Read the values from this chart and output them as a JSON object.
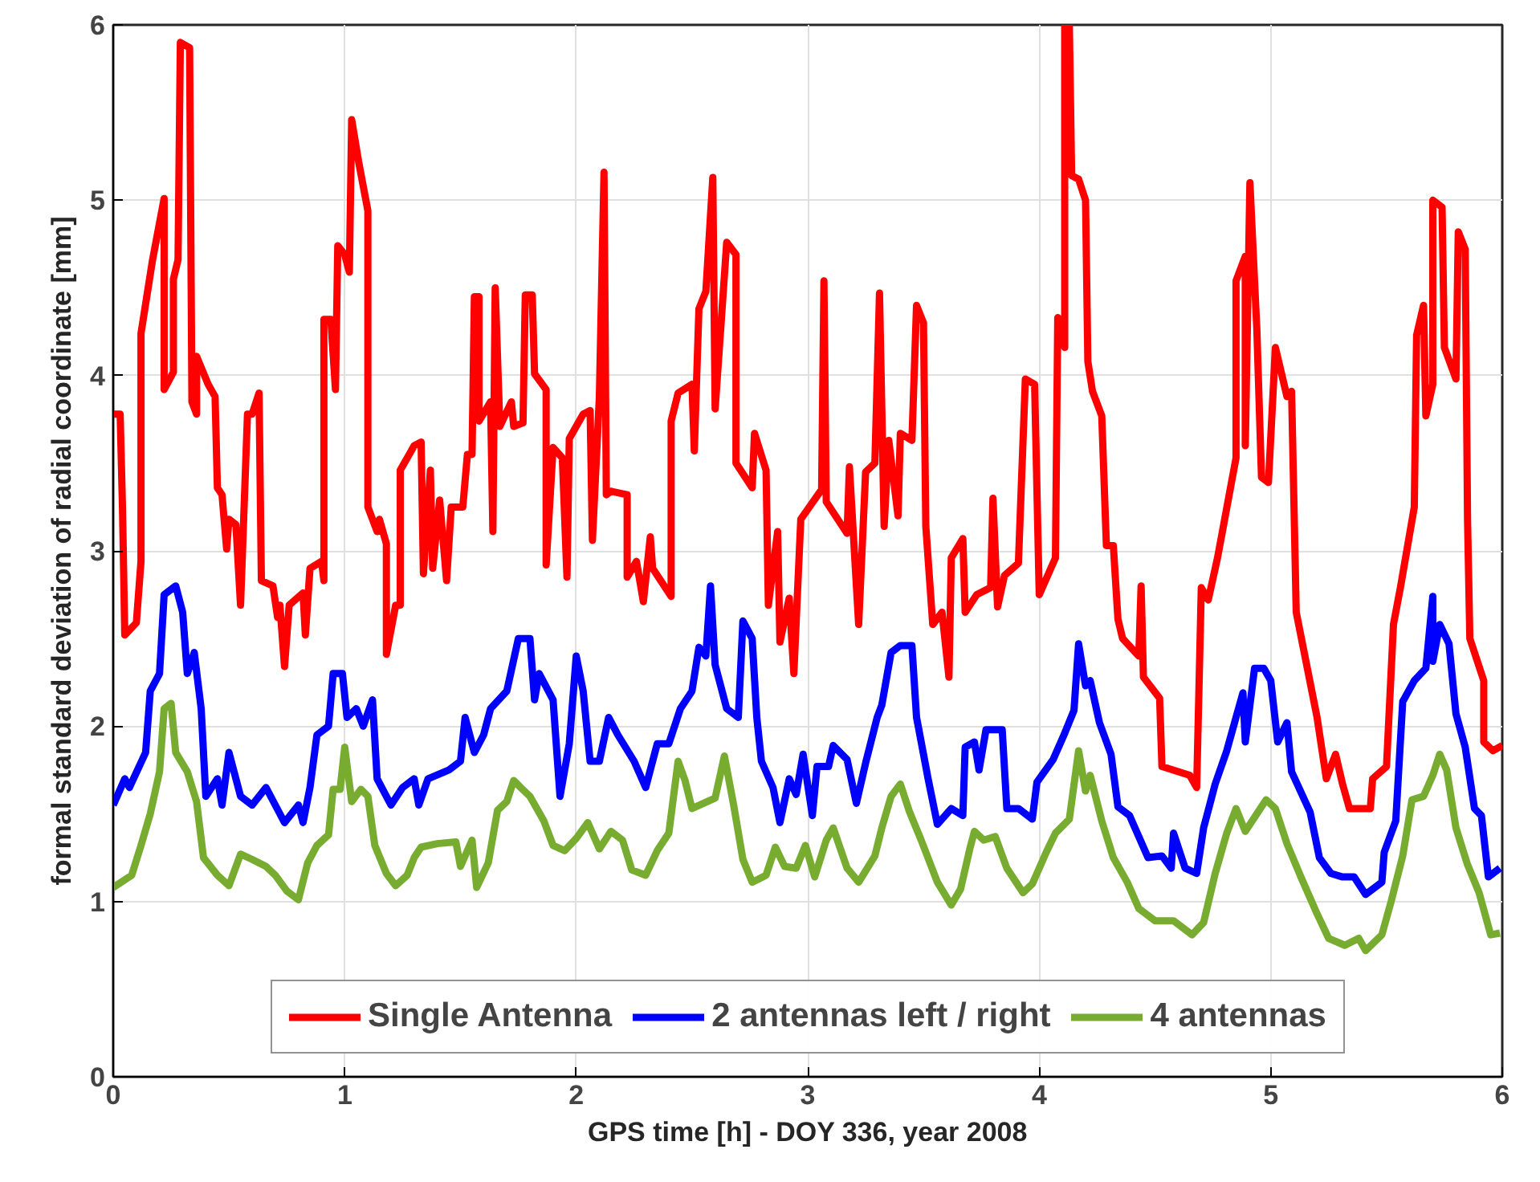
{
  "chart_data": {
    "type": "line",
    "xlabel": "GPS time [h] - DOY 336, year 2008",
    "ylabel": "formal standard deviation of radial coordinate [mm]",
    "xlim": [
      0,
      6
    ],
    "ylim": [
      0,
      6
    ],
    "xticks": [
      0,
      1,
      2,
      3,
      4,
      5,
      6
    ],
    "yticks": [
      0,
      1,
      2,
      3,
      4,
      5,
      6
    ],
    "grid": true,
    "legend": "bottom",
    "line_style": "solid",
    "series": [
      {
        "name": "Single Antenna",
        "color": "#ff0000",
        "x": [
          0,
          0.03,
          0.04,
          0.05,
          0.1,
          0.12,
          0.12,
          0.17,
          0.22,
          0.22,
          0.26,
          0.26,
          0.28,
          0.29,
          0.33,
          0.34,
          0.36,
          0.36,
          0.41,
          0.44,
          0.45,
          0.47,
          0.49,
          0.5,
          0.53,
          0.55,
          0.58,
          0.6,
          0.63,
          0.64,
          0.69,
          0.71,
          0.72,
          0.74,
          0.76,
          0.82,
          0.83,
          0.85,
          0.9,
          0.91,
          0.91,
          0.94,
          0.96,
          0.97,
          1.0,
          1.02,
          1.03,
          1.06,
          1.1,
          1.1,
          1.14,
          1.15,
          1.18,
          1.18,
          1.22,
          1.24,
          1.24,
          1.3,
          1.33,
          1.34,
          1.37,
          1.38,
          1.41,
          1.44,
          1.46,
          1.51,
          1.53,
          1.55,
          1.56,
          1.58,
          1.58,
          1.63,
          1.64,
          1.65,
          1.67,
          1.72,
          1.73,
          1.77,
          1.78,
          1.81,
          1.82,
          1.87,
          1.87,
          1.9,
          1.94,
          1.96,
          1.97,
          2.03,
          2.06,
          2.07,
          2.1,
          2.12,
          2.13,
          2.15,
          2.22,
          2.22,
          2.26,
          2.29,
          2.32,
          2.33,
          2.41,
          2.41,
          2.44,
          2.5,
          2.51,
          2.53,
          2.56,
          2.59,
          2.6,
          2.65,
          2.69,
          2.69,
          2.76,
          2.77,
          2.82,
          2.83,
          2.87,
          2.88,
          2.92,
          2.94,
          2.97,
          3.06,
          3.07,
          3.08,
          3.17,
          3.18,
          3.22,
          3.25,
          3.29,
          3.31,
          3.33,
          3.35,
          3.39,
          3.4,
          3.45,
          3.47,
          3.5,
          3.51,
          3.54,
          3.58,
          3.61,
          3.62,
          3.67,
          3.68,
          3.73,
          3.79,
          3.8,
          3.82,
          3.85,
          3.91,
          3.94,
          3.98,
          4.0,
          4.07,
          4.08,
          4.11,
          4.11,
          4.13,
          4.14,
          4.17,
          4.2,
          4.21,
          4.23,
          4.27,
          4.29,
          4.32,
          4.34,
          4.36,
          4.43,
          4.44,
          4.45,
          4.52,
          4.53,
          4.65,
          4.68,
          4.7,
          4.73,
          4.77,
          4.85,
          4.85,
          4.89,
          4.89,
          4.91,
          4.94,
          4.96,
          4.99,
          5.02,
          5.07,
          5.09,
          5.11,
          5.2,
          5.24,
          5.28,
          5.31,
          5.34,
          5.43,
          5.44,
          5.5,
          5.53,
          5.56,
          5.62,
          5.63,
          5.66,
          5.67,
          5.7,
          5.7,
          5.74,
          5.75,
          5.8,
          5.81,
          5.84,
          5.85,
          5.86,
          5.92,
          5.92,
          5.96,
          6.0
        ],
        "values": [
          3.78,
          3.78,
          3.25,
          2.52,
          2.59,
          2.94,
          4.24,
          4.66,
          5.01,
          3.92,
          4.02,
          4.55,
          4.66,
          5.9,
          5.87,
          3.85,
          3.78,
          4.11,
          3.95,
          3.88,
          3.36,
          3.32,
          3.01,
          3.18,
          3.15,
          2.69,
          3.78,
          3.78,
          3.9,
          2.83,
          2.8,
          2.62,
          2.69,
          2.34,
          2.69,
          2.76,
          2.52,
          2.9,
          2.94,
          2.83,
          4.32,
          4.32,
          3.92,
          4.74,
          4.69,
          4.59,
          5.46,
          5.22,
          4.94,
          3.25,
          3.11,
          3.18,
          3.04,
          2.41,
          2.69,
          2.69,
          3.46,
          3.6,
          3.62,
          2.87,
          3.46,
          2.9,
          3.29,
          2.83,
          3.25,
          3.25,
          3.55,
          3.55,
          4.45,
          4.45,
          3.74,
          3.85,
          3.11,
          4.5,
          3.71,
          3.85,
          3.71,
          3.73,
          4.46,
          4.46,
          4.01,
          3.92,
          2.92,
          3.59,
          3.53,
          2.85,
          3.64,
          3.78,
          3.8,
          3.06,
          3.88,
          5.16,
          3.32,
          3.34,
          3.32,
          2.85,
          2.94,
          2.71,
          3.08,
          2.9,
          2.74,
          3.74,
          3.9,
          3.95,
          3.57,
          4.38,
          4.48,
          5.13,
          3.81,
          4.76,
          4.69,
          3.5,
          3.36,
          3.67,
          3.46,
          2.69,
          3.11,
          2.48,
          2.73,
          2.3,
          3.18,
          3.35,
          4.54,
          3.28,
          3.1,
          3.48,
          2.58,
          3.45,
          3.5,
          4.47,
          3.14,
          3.63,
          3.2,
          3.67,
          3.63,
          4.4,
          4.3,
          3.14,
          2.58,
          2.65,
          2.28,
          2.96,
          3.07,
          2.65,
          2.75,
          2.79,
          3.3,
          2.68,
          2.86,
          2.93,
          3.98,
          3.95,
          2.75,
          2.96,
          4.33,
          4.16,
          6.0,
          6.0,
          5.14,
          5.12,
          5.0,
          4.08,
          3.91,
          3.77,
          3.03,
          3.03,
          2.61,
          2.5,
          2.4,
          2.8,
          2.28,
          2.16,
          1.77,
          1.72,
          1.65,
          2.79,
          2.72,
          2.96,
          3.53,
          4.54,
          4.68,
          3.6,
          5.1,
          4.26,
          3.42,
          3.39,
          4.16,
          3.88,
          3.91,
          2.65,
          2.05,
          1.7,
          1.84,
          1.67,
          1.53,
          1.53,
          1.7,
          1.77,
          2.58,
          2.79,
          3.25,
          4.23,
          4.4,
          3.77,
          3.95,
          5.0,
          4.96,
          4.16,
          3.98,
          4.82,
          4.72,
          3.18,
          2.5,
          2.26,
          1.91,
          1.86,
          1.89
        ]
      },
      {
        "name": "2 antennas left / right",
        "color": "#0000ff",
        "x": [
          0,
          0.05,
          0.07,
          0.14,
          0.16,
          0.2,
          0.22,
          0.27,
          0.3,
          0.32,
          0.35,
          0.38,
          0.4,
          0.45,
          0.47,
          0.5,
          0.55,
          0.6,
          0.66,
          0.72,
          0.74,
          0.8,
          0.82,
          0.85,
          0.88,
          0.93,
          0.95,
          0.99,
          1.01,
          1.05,
          1.08,
          1.12,
          1.14,
          1.2,
          1.25,
          1.3,
          1.32,
          1.36,
          1.45,
          1.5,
          1.52,
          1.56,
          1.6,
          1.63,
          1.7,
          1.75,
          1.8,
          1.82,
          1.84,
          1.9,
          1.93,
          1.97,
          2.0,
          2.03,
          2.06,
          2.1,
          2.14,
          2.18,
          2.25,
          2.3,
          2.35,
          2.4,
          2.45,
          2.5,
          2.53,
          2.56,
          2.58,
          2.6,
          2.65,
          2.7,
          2.72,
          2.76,
          2.78,
          2.8,
          2.85,
          2.88,
          2.92,
          2.95,
          2.98,
          3.02,
          3.04,
          3.09,
          3.11,
          3.17,
          3.21,
          3.25,
          3.3,
          3.32,
          3.36,
          3.4,
          3.45,
          3.47,
          3.52,
          3.56,
          3.62,
          3.67,
          3.68,
          3.72,
          3.74,
          3.77,
          3.84,
          3.86,
          3.91,
          3.97,
          3.99,
          4.06,
          4.11,
          4.15,
          4.17,
          4.2,
          4.22,
          4.26,
          4.31,
          4.34,
          4.39,
          4.43,
          4.47,
          4.53,
          4.57,
          4.58,
          4.63,
          4.68,
          4.71,
          4.76,
          4.81,
          4.85,
          4.88,
          4.89,
          4.93,
          4.97,
          5.0,
          5.03,
          5.07,
          5.09,
          5.17,
          5.21,
          5.26,
          5.31,
          5.36,
          5.41,
          5.48,
          5.49,
          5.54,
          5.57,
          5.62,
          5.67,
          5.7,
          5.7,
          5.73,
          5.77,
          5.8,
          5.84,
          5.88,
          5.91,
          5.94,
          5.99
        ],
        "values": [
          1.55,
          1.7,
          1.65,
          1.85,
          2.2,
          2.3,
          2.75,
          2.8,
          2.65,
          2.3,
          2.42,
          2.1,
          1.6,
          1.7,
          1.55,
          1.85,
          1.6,
          1.55,
          1.65,
          1.5,
          1.45,
          1.55,
          1.45,
          1.65,
          1.95,
          2.0,
          2.3,
          2.3,
          2.05,
          2.1,
          2.0,
          2.15,
          1.7,
          1.55,
          1.65,
          1.7,
          1.55,
          1.7,
          1.75,
          1.8,
          2.05,
          1.85,
          1.95,
          2.1,
          2.2,
          2.5,
          2.5,
          2.15,
          2.3,
          2.15,
          1.6,
          1.9,
          2.4,
          2.2,
          1.8,
          1.8,
          2.05,
          1.95,
          1.8,
          1.65,
          1.9,
          1.9,
          2.1,
          2.2,
          2.45,
          2.4,
          2.8,
          2.35,
          2.1,
          2.05,
          2.6,
          2.5,
          2.05,
          1.8,
          1.65,
          1.45,
          1.7,
          1.61,
          1.84,
          1.49,
          1.77,
          1.77,
          1.89,
          1.81,
          1.56,
          1.79,
          2.05,
          2.12,
          2.42,
          2.46,
          2.46,
          2.05,
          1.7,
          1.44,
          1.53,
          1.49,
          1.88,
          1.91,
          1.75,
          1.98,
          1.98,
          1.53,
          1.53,
          1.47,
          1.68,
          1.81,
          1.96,
          2.09,
          2.47,
          2.23,
          2.26,
          2.02,
          1.84,
          1.54,
          1.49,
          1.37,
          1.25,
          1.26,
          1.19,
          1.39,
          1.19,
          1.16,
          1.42,
          1.67,
          1.86,
          2.05,
          2.19,
          1.91,
          2.33,
          2.33,
          2.26,
          1.91,
          2.02,
          1.74,
          1.51,
          1.25,
          1.16,
          1.14,
          1.14,
          1.04,
          1.11,
          1.28,
          1.46,
          2.14,
          2.26,
          2.33,
          2.74,
          2.37,
          2.58,
          2.47,
          2.07,
          1.88,
          1.53,
          1.49,
          1.14,
          1.19
        ]
      },
      {
        "name": "4 antennas",
        "color": "#77ac30",
        "x": [
          0,
          0.08,
          0.12,
          0.16,
          0.2,
          0.22,
          0.25,
          0.27,
          0.32,
          0.36,
          0.39,
          0.45,
          0.5,
          0.55,
          0.6,
          0.66,
          0.7,
          0.75,
          0.8,
          0.84,
          0.88,
          0.93,
          0.95,
          0.98,
          1.0,
          1.03,
          1.07,
          1.1,
          1.13,
          1.18,
          1.22,
          1.27,
          1.3,
          1.33,
          1.4,
          1.48,
          1.5,
          1.55,
          1.57,
          1.62,
          1.66,
          1.7,
          1.73,
          1.76,
          1.8,
          1.86,
          1.9,
          1.95,
          2.0,
          2.05,
          2.1,
          2.15,
          2.2,
          2.24,
          2.3,
          2.35,
          2.4,
          2.44,
          2.47,
          2.5,
          2.6,
          2.64,
          2.68,
          2.72,
          2.76,
          2.82,
          2.86,
          2.9,
          2.95,
          2.99,
          3.03,
          3.08,
          3.11,
          3.17,
          3.22,
          3.29,
          3.32,
          3.36,
          3.4,
          3.44,
          3.49,
          3.56,
          3.62,
          3.66,
          3.7,
          3.72,
          3.76,
          3.81,
          3.86,
          3.93,
          3.97,
          4.03,
          4.07,
          4.13,
          4.17,
          4.2,
          4.22,
          4.27,
          4.32,
          4.38,
          4.43,
          4.5,
          4.58,
          4.66,
          4.71,
          4.76,
          4.81,
          4.85,
          4.89,
          4.94,
          4.98,
          5.02,
          5.07,
          5.13,
          5.2,
          5.25,
          5.32,
          5.38,
          5.41,
          5.48,
          5.52,
          5.57,
          5.61,
          5.66,
          5.7,
          5.73,
          5.76,
          5.8,
          5.85,
          5.9,
          5.95,
          5.99
        ],
        "values": [
          1.08,
          1.15,
          1.32,
          1.5,
          1.74,
          2.1,
          2.13,
          1.85,
          1.74,
          1.57,
          1.25,
          1.15,
          1.09,
          1.27,
          1.24,
          1.2,
          1.15,
          1.06,
          1.01,
          1.22,
          1.32,
          1.38,
          1.64,
          1.64,
          1.88,
          1.57,
          1.64,
          1.6,
          1.32,
          1.16,
          1.09,
          1.15,
          1.25,
          1.31,
          1.33,
          1.34,
          1.2,
          1.35,
          1.08,
          1.22,
          1.52,
          1.57,
          1.69,
          1.65,
          1.6,
          1.46,
          1.32,
          1.29,
          1.36,
          1.45,
          1.3,
          1.4,
          1.35,
          1.18,
          1.15,
          1.29,
          1.39,
          1.8,
          1.69,
          1.53,
          1.59,
          1.83,
          1.55,
          1.24,
          1.11,
          1.15,
          1.31,
          1.2,
          1.19,
          1.32,
          1.14,
          1.35,
          1.42,
          1.19,
          1.11,
          1.26,
          1.42,
          1.6,
          1.67,
          1.51,
          1.35,
          1.11,
          0.98,
          1.07,
          1.3,
          1.4,
          1.35,
          1.37,
          1.19,
          1.05,
          1.1,
          1.28,
          1.39,
          1.47,
          1.86,
          1.63,
          1.72,
          1.46,
          1.25,
          1.11,
          0.96,
          0.89,
          0.89,
          0.81,
          0.88,
          1.16,
          1.39,
          1.53,
          1.4,
          1.5,
          1.58,
          1.53,
          1.33,
          1.14,
          0.93,
          0.79,
          0.75,
          0.79,
          0.72,
          0.81,
          1.0,
          1.26,
          1.58,
          1.6,
          1.72,
          1.84,
          1.75,
          1.42,
          1.21,
          1.05,
          0.81,
          0.82
        ]
      }
    ]
  }
}
